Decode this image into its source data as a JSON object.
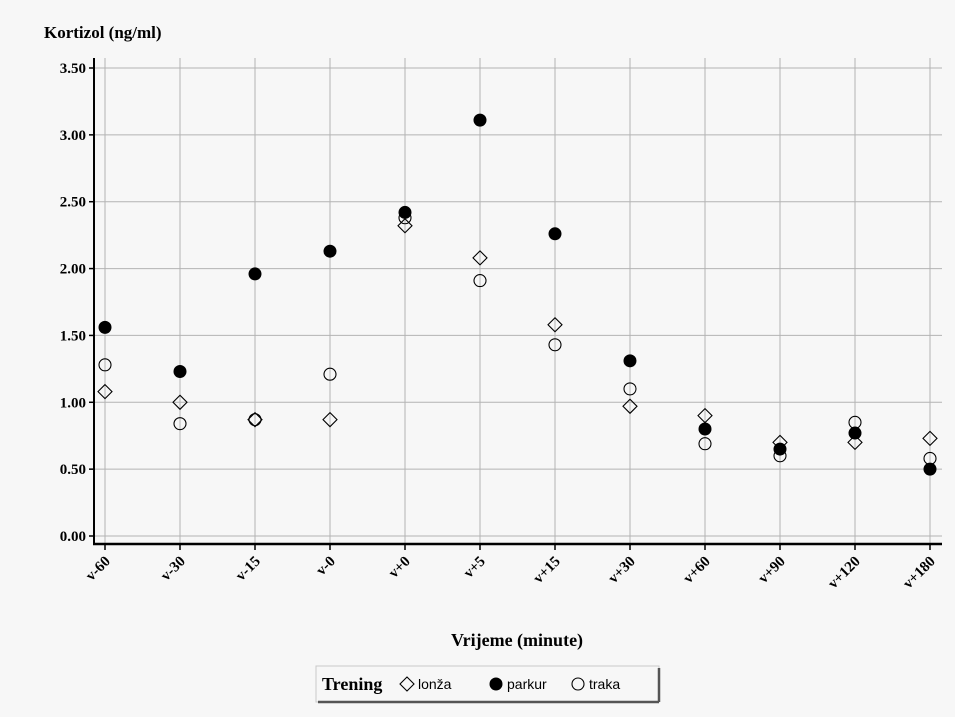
{
  "chart_data": {
    "type": "scatter",
    "ylabel": "Kortizol (ng/ml)",
    "xlabel": "Vrijeme (minute)",
    "categories": [
      "v-60",
      "v-30",
      "v-15",
      "v-0",
      "v+0",
      "v+5",
      "v+15",
      "v+30",
      "v+60",
      "v+90",
      "v+120",
      "v+180"
    ],
    "ylim": [
      0,
      3.5
    ],
    "yticks": [
      "0.00",
      "0.50",
      "1.00",
      "1.50",
      "2.00",
      "2.50",
      "3.00",
      "3.50"
    ],
    "grid": true,
    "legend": {
      "title": "Trening",
      "position": "bottom-center"
    },
    "series": [
      {
        "name": "lonža",
        "marker": "diamond-open",
        "values": [
          1.08,
          1.0,
          0.87,
          0.87,
          2.32,
          2.08,
          1.58,
          0.97,
          0.9,
          0.7,
          0.7,
          0.73
        ]
      },
      {
        "name": "parkur",
        "marker": "circle-filled",
        "values": [
          1.56,
          1.23,
          1.96,
          2.13,
          2.42,
          3.11,
          2.26,
          1.31,
          0.8,
          0.65,
          0.77,
          0.5
        ]
      },
      {
        "name": "traka",
        "marker": "circle-open",
        "values": [
          1.28,
          0.84,
          0.87,
          1.21,
          2.38,
          1.91,
          1.43,
          1.1,
          0.69,
          0.6,
          0.85,
          0.58
        ]
      }
    ],
    "colors": {
      "marker": "#000000",
      "grid": "#b3b3b3",
      "background": "#f7f7f7",
      "axis": "#000000"
    }
  }
}
